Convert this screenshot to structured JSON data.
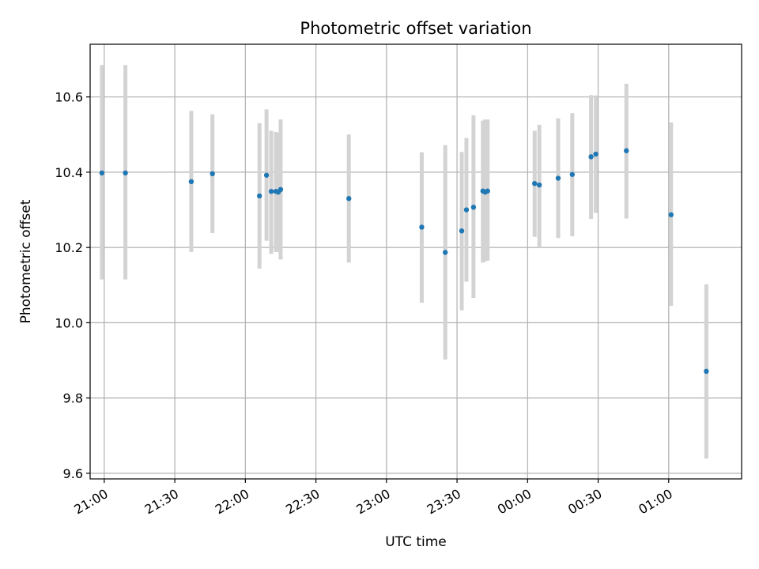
{
  "chart_data": {
    "type": "scatter",
    "title": "Photometric offset variation",
    "xlabel": "UTC time",
    "ylabel": "Photometric offset",
    "x_axis": {
      "kind": "time",
      "min": "20:54",
      "max": "01:31",
      "ticks": [
        "21:00",
        "21:30",
        "22:00",
        "22:30",
        "23:00",
        "23:30",
        "00:00",
        "00:30",
        "01:00"
      ]
    },
    "y_axis": {
      "min": 9.585,
      "max": 10.74,
      "ticks": [
        9.6,
        9.8,
        10.0,
        10.2,
        10.4,
        10.6
      ],
      "tick_labels": [
        "9.6",
        "9.8",
        "10.0",
        "10.2",
        "10.4",
        "10.6"
      ]
    },
    "grid": true,
    "colors": {
      "point": "#1f77b4",
      "error_bar": "#d3d3d3",
      "grid": "#b0b0b0"
    },
    "points": [
      {
        "time": "20:59",
        "y": 10.398,
        "err_low": 10.115,
        "err_high": 10.685
      },
      {
        "time": "21:09",
        "y": 10.398,
        "err_low": 10.115,
        "err_high": 10.685
      },
      {
        "time": "21:37",
        "y": 10.375,
        "err_low": 10.188,
        "err_high": 10.563
      },
      {
        "time": "21:46",
        "y": 10.396,
        "err_low": 10.238,
        "err_high": 10.554
      },
      {
        "time": "22:06",
        "y": 10.337,
        "err_low": 10.144,
        "err_high": 10.53
      },
      {
        "time": "22:09",
        "y": 10.392,
        "err_low": 10.218,
        "err_high": 10.567
      },
      {
        "time": "22:11",
        "y": 10.349,
        "err_low": 10.183,
        "err_high": 10.51
      },
      {
        "time": "22:13",
        "y": 10.349,
        "err_low": 10.188,
        "err_high": 10.507
      },
      {
        "time": "22:14",
        "y": 10.347,
        "err_low": 10.188,
        "err_high": 10.505
      },
      {
        "time": "22:15",
        "y": 10.354,
        "err_low": 10.168,
        "err_high": 10.54
      },
      {
        "time": "22:44",
        "y": 10.33,
        "err_low": 10.16,
        "err_high": 10.5
      },
      {
        "time": "23:15",
        "y": 10.254,
        "err_low": 10.053,
        "err_high": 10.453
      },
      {
        "time": "23:25",
        "y": 10.187,
        "err_low": 9.902,
        "err_high": 10.472
      },
      {
        "time": "23:32",
        "y": 10.244,
        "err_low": 10.033,
        "err_high": 10.454
      },
      {
        "time": "23:34",
        "y": 10.3,
        "err_low": 10.109,
        "err_high": 10.491
      },
      {
        "time": "23:37",
        "y": 10.307,
        "err_low": 10.066,
        "err_high": 10.551
      },
      {
        "time": "23:41",
        "y": 10.35,
        "err_low": 10.16,
        "err_high": 10.537
      },
      {
        "time": "23:42",
        "y": 10.347,
        "err_low": 10.163,
        "err_high": 10.54
      },
      {
        "time": "23:43",
        "y": 10.35,
        "err_low": 10.165,
        "err_high": 10.54
      },
      {
        "time": "00:03",
        "y": 10.37,
        "err_low": 10.228,
        "err_high": 10.51
      },
      {
        "time": "00:05",
        "y": 10.366,
        "err_low": 10.2,
        "err_high": 10.526
      },
      {
        "time": "00:13",
        "y": 10.384,
        "err_low": 10.225,
        "err_high": 10.543
      },
      {
        "time": "00:19",
        "y": 10.394,
        "err_low": 10.23,
        "err_high": 10.557
      },
      {
        "time": "00:27",
        "y": 10.441,
        "err_low": 10.276,
        "err_high": 10.605
      },
      {
        "time": "00:29",
        "y": 10.448,
        "err_low": 10.292,
        "err_high": 10.604
      },
      {
        "time": "00:42",
        "y": 10.457,
        "err_low": 10.277,
        "err_high": 10.635
      },
      {
        "time": "01:01",
        "y": 10.287,
        "err_low": 10.045,
        "err_high": 10.532
      },
      {
        "time": "01:16",
        "y": 9.871,
        "err_low": 9.639,
        "err_high": 10.102
      }
    ]
  }
}
